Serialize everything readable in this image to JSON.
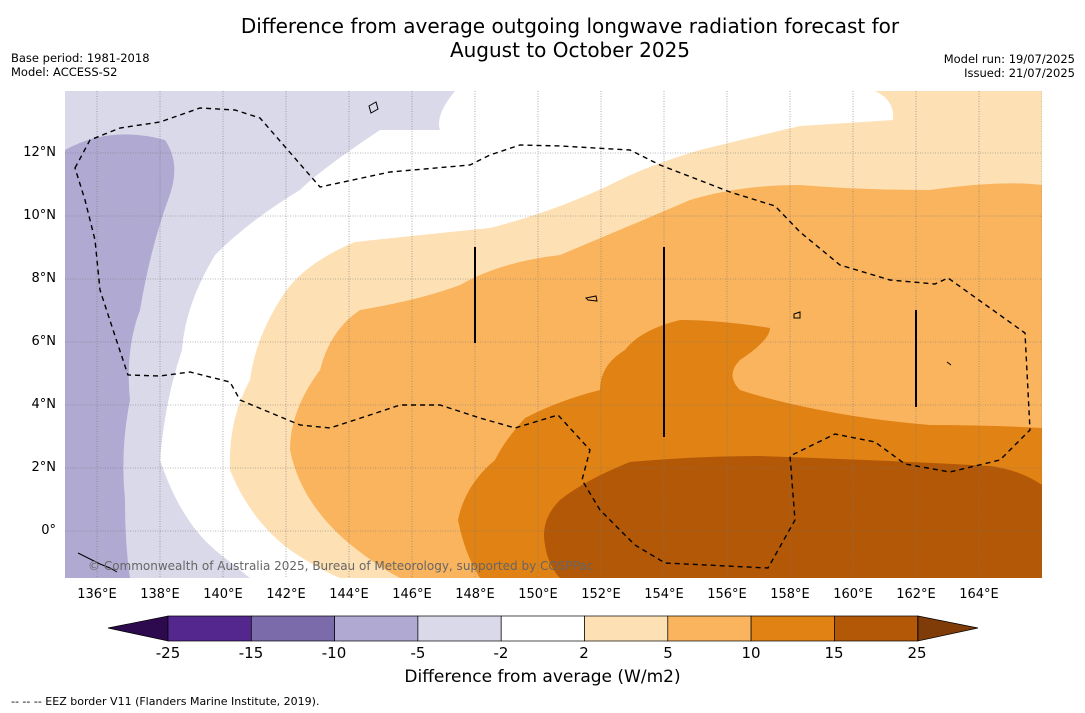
{
  "header": {
    "title_line1": "Difference from average outgoing longwave radiation forecast for",
    "title_line2": "August to October 2025",
    "base_period": "Base period: 1981-2018",
    "model": "Model: ACCESS-S2",
    "model_run": "Model run: 19/07/2025",
    "issued": "Issued: 21/07/2025"
  },
  "map": {
    "lat_labels": [
      "12°N",
      "10°N",
      "8°N",
      "6°N",
      "4°N",
      "2°N",
      "0°"
    ],
    "lon_labels": [
      "136°E",
      "138°E",
      "140°E",
      "142°E",
      "144°E",
      "146°E",
      "148°E",
      "150°E",
      "152°E",
      "154°E",
      "156°E",
      "158°E",
      "160°E",
      "162°E",
      "164°E"
    ],
    "copyright": "© Commonwealth of Australia 2025, Bureau of Meteorology, supported by COSPPac"
  },
  "legend": {
    "title": "Difference from average (W/m2)",
    "ticks": [
      "-25",
      "-15",
      "-10",
      "-5",
      "-2",
      "2",
      "5",
      "10",
      "15",
      "25"
    ],
    "colors": {
      "below_-25": "#2d0a4e",
      "-25_-15": "#54278f",
      "-15_-10": "#7b6bab",
      "-10_-5": "#b0a9d2",
      "-5_-2": "#d9d9ea",
      "-2_2": "#ffffff",
      "2_5": "#fde0b4",
      "5_10": "#fab45d",
      "10_15": "#e08214",
      "15_25": "#b35806",
      "above_25": "#7f3b08"
    }
  },
  "footer": {
    "note": "-- -- -- EEZ border V11 (Flanders Marine Institute, 2019)."
  }
}
